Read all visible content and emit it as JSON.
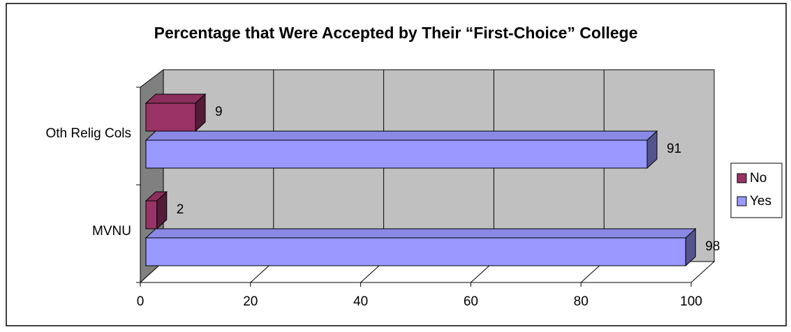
{
  "chart_data": {
    "type": "bar",
    "orientation": "horizontal",
    "three_d": true,
    "title": "Percentage that Were Accepted by Their “First-Choice” College",
    "categories": [
      "Oth Relig Cols",
      "MVNU"
    ],
    "series": [
      {
        "name": "No",
        "values": [
          9,
          2
        ],
        "color": "#993366"
      },
      {
        "name": "Yes",
        "values": [
          91,
          98
        ],
        "color": "#9999ff"
      }
    ],
    "data_labels": true,
    "xlim": [
      0,
      100
    ],
    "x_ticks": [
      0,
      20,
      40,
      60,
      80,
      100
    ],
    "grid": true,
    "legend": "right",
    "colors": {
      "wall": "#c0c0c0",
      "side_wall": "#808080",
      "floor": "#ffffff",
      "border": "#000000"
    }
  }
}
